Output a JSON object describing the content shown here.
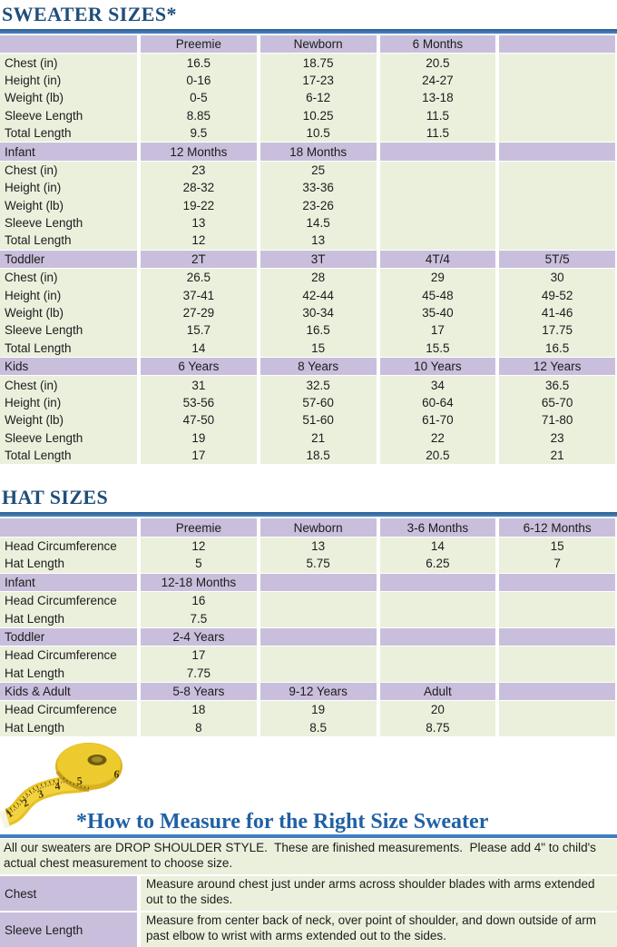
{
  "colors": {
    "title_blue": "#1F4E79",
    "heading_blue": "#2061A4",
    "rule_blue": "#4180C0",
    "header_purple": "#C9BFDC",
    "row_green": "#EBF0DD",
    "tape_yellow": "#ECC727"
  },
  "sweater_table": {
    "title": "SWEATER SIZES*",
    "sections": [
      {
        "header": [
          "",
          "Preemie",
          "Newborn",
          "6 Months",
          ""
        ],
        "rows": [
          [
            "Chest (in)",
            "16.5",
            "18.75",
            "20.5",
            ""
          ],
          [
            "Height (in)",
            "0-16",
            "17-23",
            "24-27",
            ""
          ],
          [
            "Weight (lb)",
            "0-5",
            "6-12",
            "13-18",
            ""
          ],
          [
            "Sleeve Length",
            "8.85",
            "10.25",
            "11.5",
            ""
          ],
          [
            "Total Length",
            "9.5",
            "10.5",
            "11.5",
            ""
          ]
        ]
      },
      {
        "header": [
          "Infant",
          "12 Months",
          "18 Months",
          "",
          ""
        ],
        "rows": [
          [
            "Chest (in)",
            "23",
            "25",
            "",
            ""
          ],
          [
            "Height (in)",
            "28-32",
            "33-36",
            "",
            ""
          ],
          [
            "Weight (lb)",
            "19-22",
            "23-26",
            "",
            ""
          ],
          [
            "Sleeve Length",
            "13",
            "14.5",
            "",
            ""
          ],
          [
            "Total Length",
            "12",
            "13",
            "",
            ""
          ]
        ]
      },
      {
        "header": [
          "Toddler",
          "2T",
          "3T",
          "4T/4",
          "5T/5"
        ],
        "rows": [
          [
            "Chest (in)",
            "26.5",
            "28",
            "29",
            "30"
          ],
          [
            "Height (in)",
            "37-41",
            "42-44",
            "45-48",
            "49-52"
          ],
          [
            "Weight (lb)",
            "27-29",
            "30-34",
            "35-40",
            "41-46"
          ],
          [
            "Sleeve Length",
            "15.7",
            "16.5",
            "17",
            "17.75"
          ],
          [
            "Total Length",
            "14",
            "15",
            "15.5",
            "16.5"
          ]
        ]
      },
      {
        "header": [
          "Kids",
          "6 Years",
          "8 Years",
          "10 Years",
          "12 Years"
        ],
        "rows": [
          [
            "Chest (in)",
            "31",
            "32.5",
            "34",
            "36.5"
          ],
          [
            "Height (in)",
            "53-56",
            "57-60",
            "60-64",
            "65-70"
          ],
          [
            "Weight (lb)",
            "47-50",
            "51-60",
            "61-70",
            "71-80"
          ],
          [
            "Sleeve Length",
            "19",
            "21",
            "22",
            "23"
          ],
          [
            "Total Length",
            "17",
            "18.5",
            "20.5",
            "21"
          ]
        ]
      }
    ]
  },
  "hat_table": {
    "title": "HAT SIZES",
    "sections": [
      {
        "header": [
          "",
          "Preemie",
          "Newborn",
          "3-6 Months",
          "6-12 Months"
        ],
        "rows": [
          [
            "Head Circumference",
            "12",
            "13",
            "14",
            "15"
          ],
          [
            "Hat Length",
            "5",
            "5.75",
            "6.25",
            "7"
          ]
        ]
      },
      {
        "header": [
          "Infant",
          "12-18 Months",
          "",
          "",
          ""
        ],
        "rows": [
          [
            "Head Circumference",
            "16",
            "",
            "",
            ""
          ],
          [
            "Hat Length",
            "7.5",
            "",
            "",
            ""
          ]
        ]
      },
      {
        "header": [
          "Toddler",
          "2-4 Years",
          "",
          "",
          ""
        ],
        "rows": [
          [
            "Head Circumference",
            "17",
            "",
            "",
            ""
          ],
          [
            "Hat Length",
            "7.75",
            "",
            "",
            ""
          ]
        ]
      },
      {
        "header": [
          "Kids & Adult",
          "5-8 Years",
          "9-12 Years",
          "Adult",
          ""
        ],
        "rows": [
          [
            "Head Circumference",
            "18",
            "19",
            "20",
            ""
          ],
          [
            "Hat Length",
            "8",
            "8.5",
            "8.75",
            ""
          ]
        ]
      }
    ]
  },
  "measure": {
    "heading": "*How to Measure for the Right Size Sweater",
    "intro": "All our sweaters are DROP SHOULDER STYLE.  These are finished measurements.  Please add 4\" to child's actual chest measurement to choose size.",
    "items": [
      {
        "label": "Chest",
        "text": "Measure around chest just under arms across shoulder blades with arms extended out to the sides."
      },
      {
        "label": "Sleeve Length",
        "text": "Measure from center back of neck, over point of shoulder, and down outside of arm past elbow to wrist with arms extended out to the sides."
      }
    ],
    "tape_numbers": [
      "1",
      "2",
      "3",
      "4",
      "5",
      "6"
    ]
  }
}
